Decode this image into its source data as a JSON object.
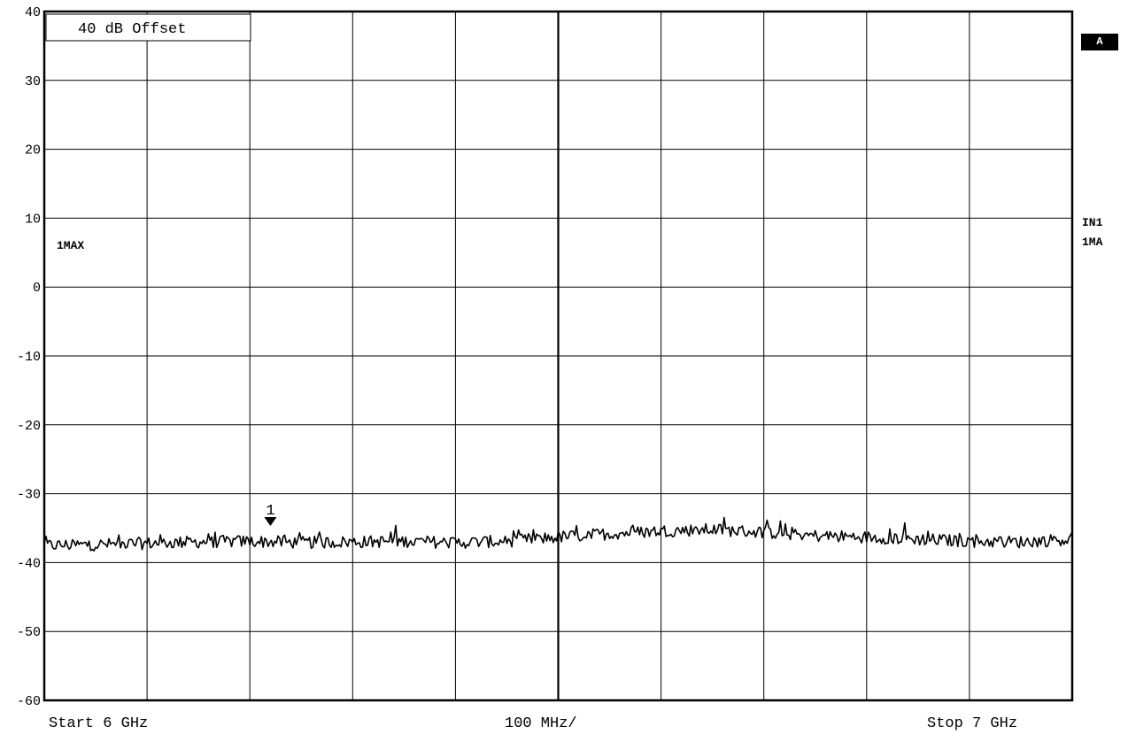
{
  "chart_data": {
    "type": "line",
    "title": "",
    "offset_label": "40 dB Offset",
    "trace_label": "1MAX",
    "ylim": [
      -60,
      40
    ],
    "yticks": [
      "40",
      "30",
      "20",
      "10",
      "0",
      "-10",
      "-20",
      "-30",
      "-40",
      "-50",
      "-60"
    ],
    "xlim": [
      6.0,
      7.0
    ],
    "x_unit": "GHz",
    "x_divisions": 10,
    "y_divisions": 10,
    "grid": true,
    "start_label": "Start 6 GHz",
    "span_label": "100 MHz/",
    "stop_label": "Stop 7 GHz",
    "series": [
      {
        "x": [
          6.0,
          6.05,
          6.1,
          6.15,
          6.2,
          6.25,
          6.3,
          6.35,
          6.4,
          6.45,
          6.5,
          6.55,
          6.6,
          6.65,
          6.7,
          6.75,
          6.8,
          6.85,
          6.9,
          6.95,
          7.0
        ],
        "values": [
          -37.5,
          -37.4,
          -37.2,
          -37.0,
          -36.9,
          -37.1,
          -37.0,
          -36.9,
          -37.1,
          -36.9,
          -36.3,
          -35.8,
          -35.4,
          -35.2,
          -35.6,
          -36.1,
          -36.3,
          -36.6,
          -36.9,
          -37.0,
          -36.6
        ],
        "noise": 0.9,
        "color": "#000000"
      }
    ],
    "markers": [
      {
        "label": "1",
        "x": 6.22,
        "y": -34.8
      }
    ]
  },
  "badge": "A",
  "side_labels": {
    "input": "IN1",
    "trace": "1MA"
  }
}
